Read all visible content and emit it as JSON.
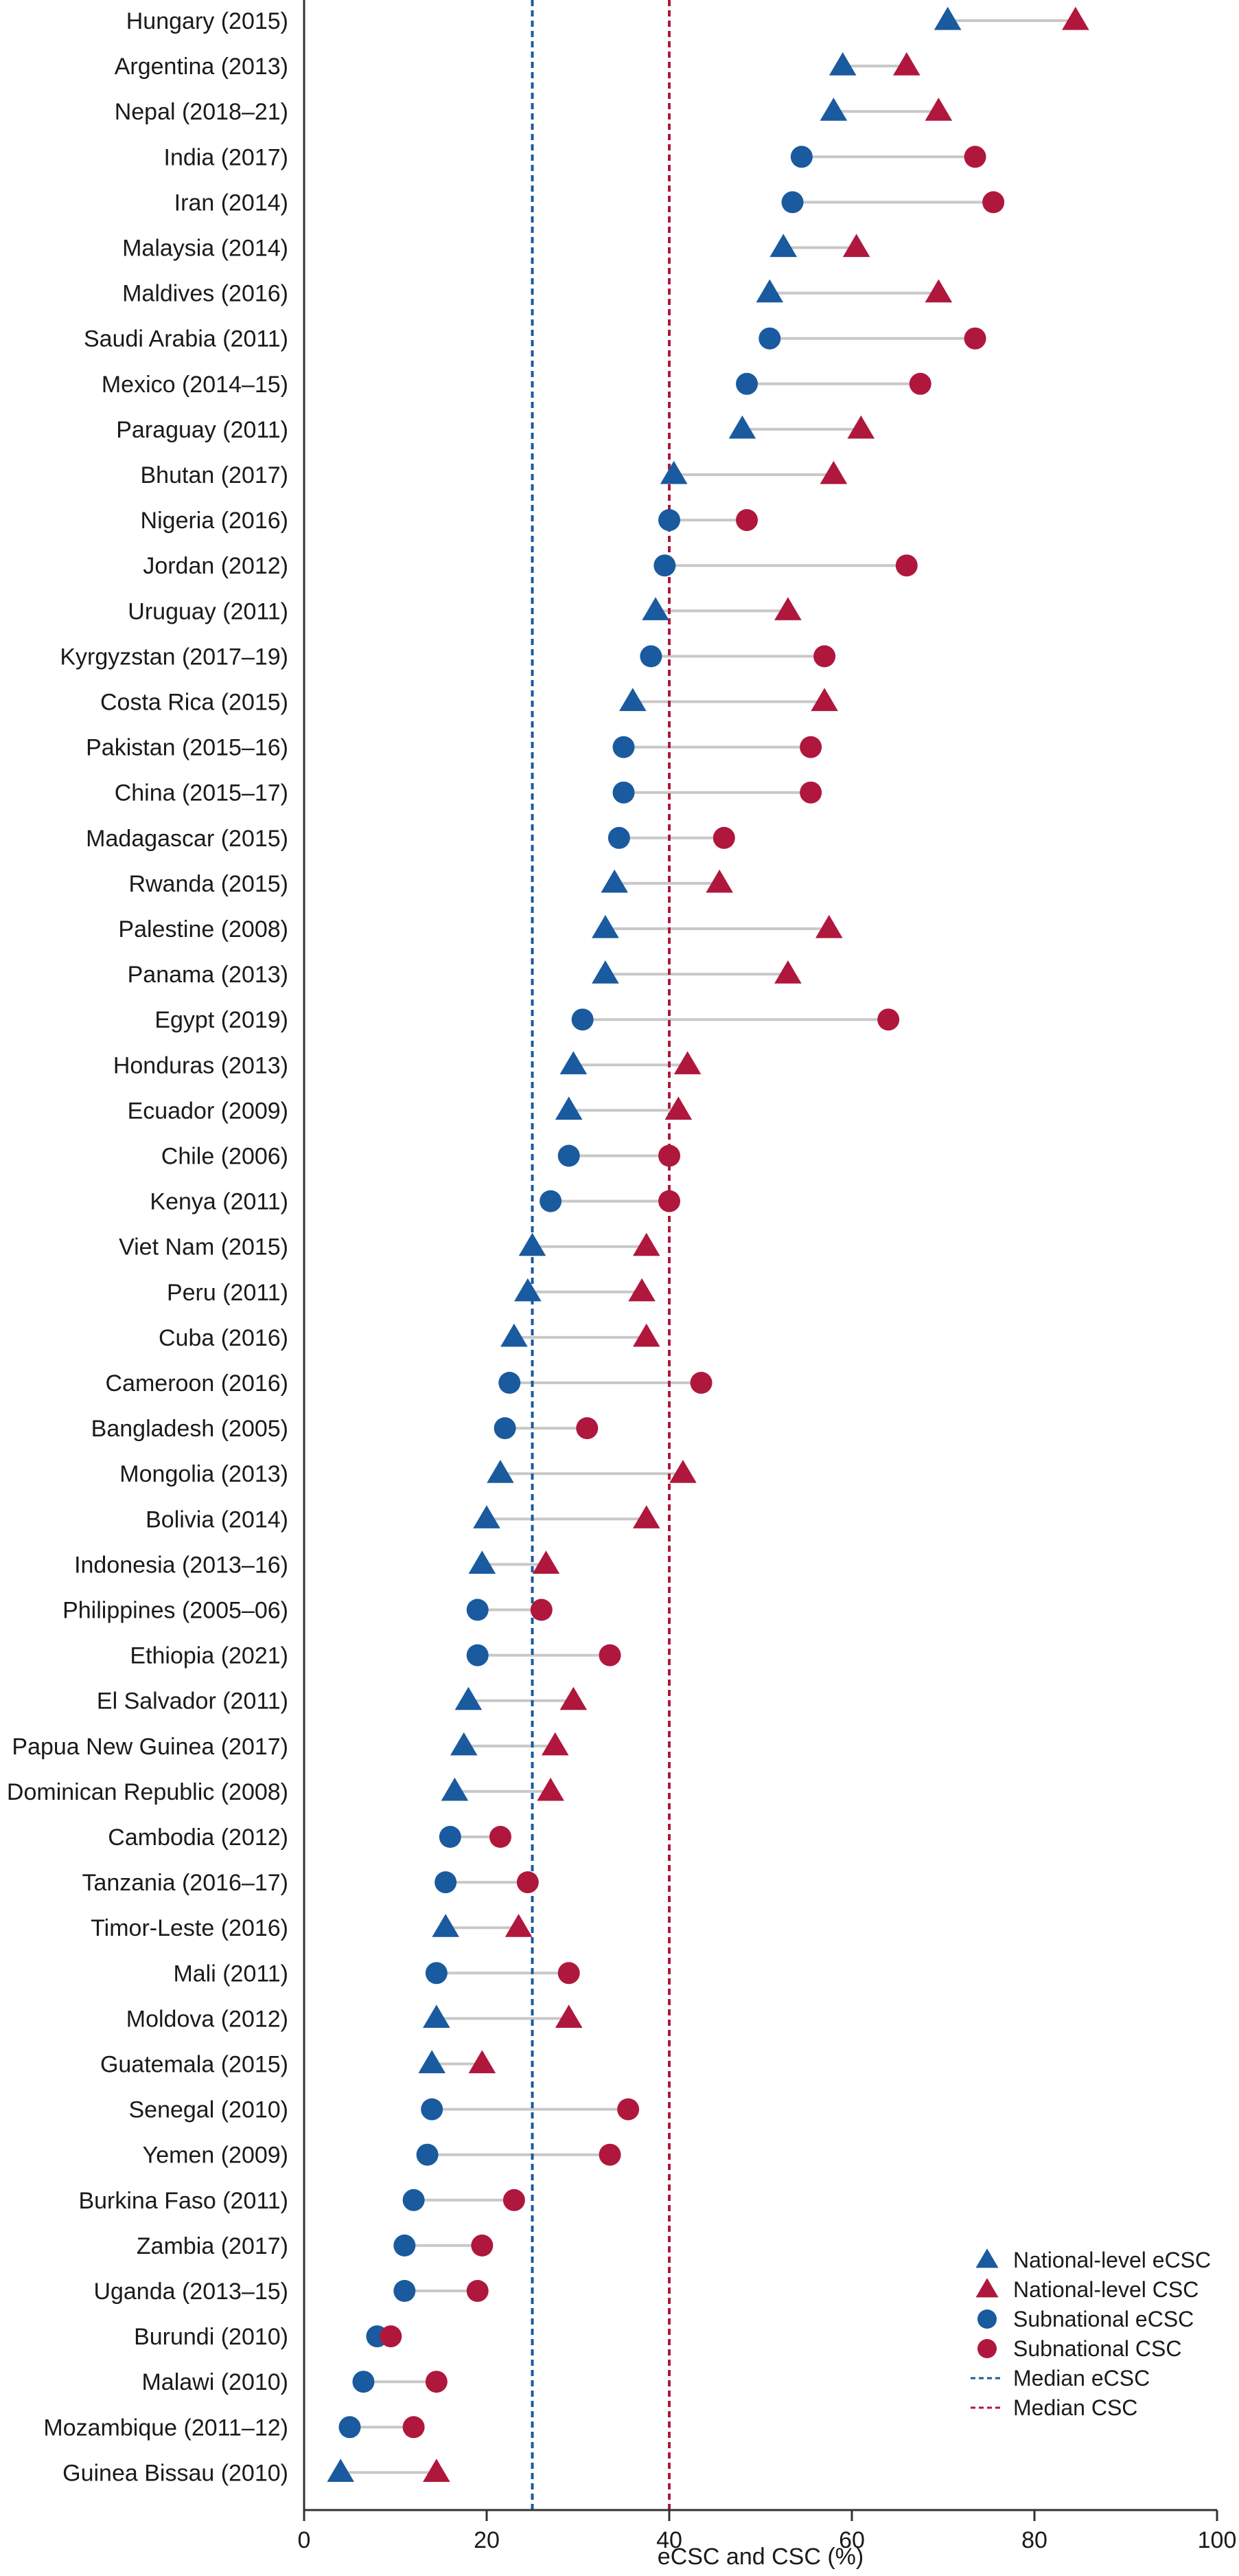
{
  "colors": {
    "ecsc": "#1a5a9e",
    "csc": "#b0173d",
    "connector": "#c8c8c8",
    "axis": "#333333"
  },
  "chart_data": {
    "type": "scatter",
    "subtype": "dumbbell",
    "title": "",
    "xlabel": "eCSC and CSC (%)",
    "ylabel": "",
    "xlim": [
      0,
      100
    ],
    "xticks": [
      0,
      20,
      40,
      60,
      80,
      100
    ],
    "grid": false,
    "legend_position": "bottom-right",
    "legend": [
      {
        "label": "National-level eCSC",
        "marker": "triangle",
        "color": "#1a5a9e"
      },
      {
        "label": "National-level CSC",
        "marker": "triangle",
        "color": "#b0173d"
      },
      {
        "label": "Subnational eCSC",
        "marker": "circle",
        "color": "#1a5a9e"
      },
      {
        "label": "Subnational CSC",
        "marker": "circle",
        "color": "#b0173d"
      },
      {
        "label": "Median eCSC",
        "marker": "dashed-line",
        "color": "#1a5a9e"
      },
      {
        "label": "Median CSC",
        "marker": "dashed-line",
        "color": "#b0173d"
      }
    ],
    "medians": {
      "ecsc": 25,
      "csc": 40
    },
    "countries": [
      {
        "label": "Hungary (2015)",
        "level": "national",
        "ecsc": 70.5,
        "csc": 84.5
      },
      {
        "label": "Argentina (2013)",
        "level": "national",
        "ecsc": 59,
        "csc": 66
      },
      {
        "label": "Nepal (2018–21)",
        "level": "national",
        "ecsc": 58,
        "csc": 69.5
      },
      {
        "label": "India (2017)",
        "level": "subnational",
        "ecsc": 54.5,
        "csc": 73.5
      },
      {
        "label": "Iran (2014)",
        "level": "subnational",
        "ecsc": 53.5,
        "csc": 75.5
      },
      {
        "label": "Malaysia (2014)",
        "level": "national",
        "ecsc": 52.5,
        "csc": 60.5
      },
      {
        "label": "Maldives (2016)",
        "level": "national",
        "ecsc": 51,
        "csc": 69.5
      },
      {
        "label": "Saudi Arabia (2011)",
        "level": "subnational",
        "ecsc": 51,
        "csc": 73.5
      },
      {
        "label": "Mexico (2014–15)",
        "level": "subnational",
        "ecsc": 48.5,
        "csc": 67.5
      },
      {
        "label": "Paraguay (2011)",
        "level": "national",
        "ecsc": 48,
        "csc": 61
      },
      {
        "label": "Bhutan (2017)",
        "level": "national",
        "ecsc": 40.5,
        "csc": 58
      },
      {
        "label": "Nigeria (2016)",
        "level": "subnational",
        "ecsc": 40,
        "csc": 48.5
      },
      {
        "label": "Jordan (2012)",
        "level": "subnational",
        "ecsc": 39.5,
        "csc": 66
      },
      {
        "label": "Uruguay (2011)",
        "level": "national",
        "ecsc": 38.5,
        "csc": 53
      },
      {
        "label": "Kyrgyzstan (2017–19)",
        "level": "subnational",
        "ecsc": 38,
        "csc": 57
      },
      {
        "label": "Costa Rica (2015)",
        "level": "national",
        "ecsc": 36,
        "csc": 57
      },
      {
        "label": "Pakistan (2015–16)",
        "level": "subnational",
        "ecsc": 35,
        "csc": 55.5
      },
      {
        "label": "China (2015–17)",
        "level": "subnational",
        "ecsc": 35,
        "csc": 55.5
      },
      {
        "label": "Madagascar (2015)",
        "level": "subnational",
        "ecsc": 34.5,
        "csc": 46
      },
      {
        "label": "Rwanda (2015)",
        "level": "national",
        "ecsc": 34,
        "csc": 45.5
      },
      {
        "label": "Palestine (2008)",
        "level": "national",
        "ecsc": 33,
        "csc": 57.5
      },
      {
        "label": "Panama (2013)",
        "level": "national",
        "ecsc": 33,
        "csc": 53
      },
      {
        "label": "Egypt (2019)",
        "level": "subnational",
        "ecsc": 30.5,
        "csc": 64
      },
      {
        "label": "Honduras (2013)",
        "level": "national",
        "ecsc": 29.5,
        "csc": 42
      },
      {
        "label": "Ecuador (2009)",
        "level": "national",
        "ecsc": 29,
        "csc": 41
      },
      {
        "label": "Chile (2006)",
        "level": "subnational",
        "ecsc": 29,
        "csc": 40
      },
      {
        "label": "Kenya (2011)",
        "level": "subnational",
        "ecsc": 27,
        "csc": 40
      },
      {
        "label": "Viet Nam (2015)",
        "level": "national",
        "ecsc": 25,
        "csc": 37.5
      },
      {
        "label": "Peru (2011)",
        "level": "national",
        "ecsc": 24.5,
        "csc": 37
      },
      {
        "label": "Cuba (2016)",
        "level": "national",
        "ecsc": 23,
        "csc": 37.5
      },
      {
        "label": "Cameroon (2016)",
        "level": "subnational",
        "ecsc": 22.5,
        "csc": 43.5
      },
      {
        "label": "Bangladesh (2005)",
        "level": "subnational",
        "ecsc": 22,
        "csc": 31
      },
      {
        "label": "Mongolia (2013)",
        "level": "national",
        "ecsc": 21.5,
        "csc": 41.5
      },
      {
        "label": "Bolivia (2014)",
        "level": "national",
        "ecsc": 20,
        "csc": 37.5
      },
      {
        "label": "Indonesia (2013–16)",
        "level": "national",
        "ecsc": 19.5,
        "csc": 26.5
      },
      {
        "label": "Philippines (2005–06)",
        "level": "subnational",
        "ecsc": 19,
        "csc": 26
      },
      {
        "label": "Ethiopia (2021)",
        "level": "subnational",
        "ecsc": 19,
        "csc": 33.5
      },
      {
        "label": "El Salvador (2011)",
        "level": "national",
        "ecsc": 18,
        "csc": 29.5
      },
      {
        "label": "Papua New Guinea (2017)",
        "level": "national",
        "ecsc": 17.5,
        "csc": 27.5
      },
      {
        "label": "Dominican Republic (2008)",
        "level": "national",
        "ecsc": 16.5,
        "csc": 27
      },
      {
        "label": "Cambodia (2012)",
        "level": "subnational",
        "ecsc": 16,
        "csc": 21.5
      },
      {
        "label": "Tanzania (2016–17)",
        "level": "subnational",
        "ecsc": 15.5,
        "csc": 24.5
      },
      {
        "label": "Timor-Leste (2016)",
        "level": "national",
        "ecsc": 15.5,
        "csc": 23.5
      },
      {
        "label": "Mali (2011)",
        "level": "subnational",
        "ecsc": 14.5,
        "csc": 29
      },
      {
        "label": "Moldova (2012)",
        "level": "national",
        "ecsc": 14.5,
        "csc": 29
      },
      {
        "label": "Guatemala (2015)",
        "level": "national",
        "ecsc": 14,
        "csc": 19.5
      },
      {
        "label": "Senegal (2010)",
        "level": "subnational",
        "ecsc": 14,
        "csc": 35.5
      },
      {
        "label": "Yemen (2009)",
        "level": "subnational",
        "ecsc": 13.5,
        "csc": 33.5
      },
      {
        "label": "Burkina Faso (2011)",
        "level": "subnational",
        "ecsc": 12,
        "csc": 23
      },
      {
        "label": "Zambia (2017)",
        "level": "subnational",
        "ecsc": 11,
        "csc": 19.5
      },
      {
        "label": "Uganda (2013–15)",
        "level": "subnational",
        "ecsc": 11,
        "csc": 19
      },
      {
        "label": "Burundi (2010)",
        "level": "subnational",
        "ecsc": 8,
        "csc": 9.5
      },
      {
        "label": "Malawi (2010)",
        "level": "subnational",
        "ecsc": 6.5,
        "csc": 14.5
      },
      {
        "label": "Mozambique (2011–12)",
        "level": "subnational",
        "ecsc": 5,
        "csc": 12
      },
      {
        "label": "Guinea Bissau (2010)",
        "level": "national",
        "ecsc": 4,
        "csc": 14.5
      }
    ]
  }
}
